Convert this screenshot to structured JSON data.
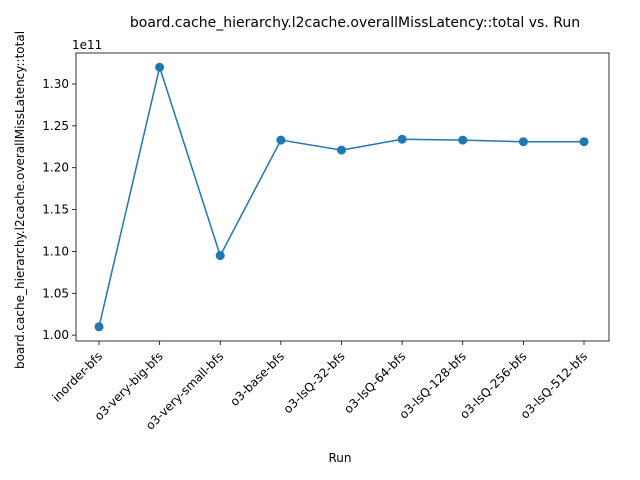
{
  "chart_data": {
    "type": "line",
    "title": "board.cache_hierarchy.l2cache.overallMissLatency::total vs. Run",
    "xlabel": "Run",
    "ylabel": "board.cache_hierarchy.l2cache.overallMissLatency::total",
    "y_offset_label": "1e11",
    "y_scale": 100000000000,
    "categories": [
      "inorder-bfs",
      "o3-very-big-bfs",
      "o3-very-small-bfs",
      "o3-base-bfs",
      "o3-lsQ-32-bfs",
      "o3-lsQ-64-bfs",
      "o3-lsQ-128-bfs",
      "o3-lsQ-256-bfs",
      "o3-lsQ-512-bfs"
    ],
    "values": [
      101000000000,
      132000000000,
      109500000000,
      123300000000,
      122100000000,
      123400000000,
      123300000000,
      123100000000,
      123100000000
    ],
    "ylim": [
      99300000000,
      133700000000
    ],
    "yticks": [
      100000000000,
      105000000000,
      110000000000,
      115000000000,
      120000000000,
      125000000000,
      130000000000
    ],
    "ytick_labels": [
      "1.00",
      "1.05",
      "1.10",
      "1.15",
      "1.20",
      "1.25",
      "1.30"
    ],
    "color": "#1f77b4",
    "markers": true,
    "grid": false
  }
}
